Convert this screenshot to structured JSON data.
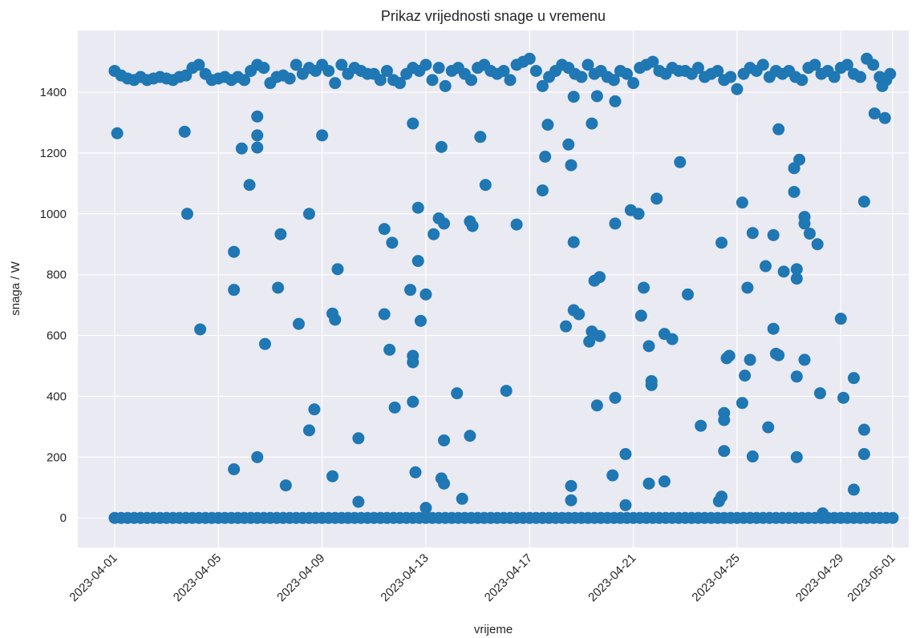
{
  "chart_data": {
    "type": "scatter",
    "title": "Prikaz vrijednosti snage u vremenu",
    "xlabel": "vrijeme",
    "ylabel": "snaga / W",
    "color": "#1f77b4",
    "grid": true,
    "xlim": [
      -1.42,
      30.62
    ],
    "ylim": [
      -97,
      1603
    ],
    "xticks": [
      {
        "value": 0,
        "label": "2023-04-01"
      },
      {
        "value": 4,
        "label": "2023-04-05"
      },
      {
        "value": 8,
        "label": "2023-04-09"
      },
      {
        "value": 12,
        "label": "2023-04-13"
      },
      {
        "value": 16,
        "label": "2023-04-17"
      },
      {
        "value": 20,
        "label": "2023-04-21"
      },
      {
        "value": 24,
        "label": "2023-04-25"
      },
      {
        "value": 28,
        "label": "2023-04-29"
      },
      {
        "value": 30,
        "label": "2023-05-01"
      }
    ],
    "yticks": [
      0,
      200,
      400,
      600,
      800,
      1000,
      1200,
      1400
    ],
    "x": [
      0,
      0.25,
      0.5,
      0.75,
      1,
      1.25,
      1.5,
      1.75,
      2,
      2.25,
      2.5,
      2.75,
      3,
      3.25,
      3.5,
      3.75,
      4,
      4.25,
      4.5,
      4.75,
      5,
      5.25,
      5.5,
      5.75,
      6,
      6.25,
      6.5,
      6.75,
      7,
      7.25,
      7.5,
      7.75,
      8,
      8.25,
      8.5,
      8.75,
      9,
      9.25,
      9.5,
      9.75,
      10,
      10.25,
      10.5,
      10.75,
      11,
      11.25,
      11.5,
      11.75,
      12,
      12.25,
      12.5,
      12.75,
      13,
      13.25,
      13.5,
      13.75,
      14,
      14.25,
      14.5,
      14.75,
      15,
      15.25,
      15.5,
      15.75,
      16,
      16.25,
      16.5,
      16.75,
      17,
      17.25,
      17.5,
      17.75,
      18,
      18.25,
      18.5,
      18.75,
      19,
      19.25,
      19.5,
      19.75,
      20,
      20.25,
      20.5,
      20.75,
      21,
      21.25,
      21.5,
      21.75,
      22,
      22.25,
      22.5,
      22.75,
      23,
      23.25,
      23.5,
      23.75,
      24,
      24.25,
      24.5,
      24.75,
      25,
      25.25,
      25.5,
      25.75,
      26,
      26.25,
      26.5,
      26.75,
      27,
      27.25,
      27.5,
      27.75,
      28,
      28.25,
      28.5,
      28.75,
      29,
      29.25,
      29.5,
      29.75,
      30,
      0,
      0.25,
      0.5,
      0.75,
      1,
      1.25,
      1.5,
      1.75,
      2,
      2.25,
      2.5,
      2.75,
      3,
      3.25,
      3.5,
      3.75,
      4,
      4.25,
      4.5,
      4.75,
      5,
      5.25,
      5.5,
      5.75,
      6,
      6.25,
      6.5,
      6.75,
      7,
      7.25,
      7.5,
      7.75,
      8,
      8.25,
      8.5,
      8.75,
      9,
      9.25,
      9.5,
      9.75,
      10,
      10.25,
      10.5,
      10.75,
      11,
      11.25,
      11.5,
      11.75,
      12,
      12.25,
      12.5,
      12.75,
      13,
      13.25,
      13.5,
      13.75,
      14,
      14.25,
      14.5,
      14.75,
      15,
      15.25,
      15.5,
      15.75,
      16,
      16.25,
      16.5,
      16.75,
      17,
      17.25,
      17.5,
      17.75,
      18,
      18.25,
      18.5,
      18.75,
      19,
      19.25,
      19.5,
      19.75,
      20,
      20.25,
      20.5,
      20.75,
      21,
      21.25,
      21.5,
      21.75,
      22,
      22.25,
      22.5,
      22.75,
      23,
      23.25,
      23.5,
      23.75,
      24,
      24.25,
      24.5,
      24.75,
      25,
      25.25,
      25.5,
      25.75,
      26,
      26.25,
      26.5,
      26.75,
      27,
      27.25,
      27.5,
      27.75,
      28,
      28.25,
      28.5,
      28.75,
      29,
      29.25,
      29.5,
      29.75,
      0.1,
      2.7,
      2.8,
      3.3,
      4.6,
      4.6,
      4.6,
      4.9,
      5.2,
      5.5,
      5.5,
      5.5,
      5.5,
      5.8,
      6.3,
      6.4,
      6.6,
      7.1,
      7.5,
      7.5,
      7.7,
      8.0,
      8.4,
      8.5,
      8.6,
      8.4,
      9.4,
      9.4,
      10.4,
      10.4,
      10.6,
      10.7,
      10.8,
      11.4,
      11.5,
      11.5,
      11.5,
      11.5,
      11.6,
      11.7,
      11.7,
      11.8,
      12.0,
      12.0,
      12.3,
      12.5,
      12.6,
      12.7,
      12.7,
      12.6,
      12.7,
      13.2,
      13.4,
      13.7,
      13.7,
      13.8,
      14.1,
      14.3,
      15.1,
      15.5,
      16.5,
      16.6,
      16.7,
      17.4,
      17.5,
      17.6,
      17.6,
      17.6,
      17.7,
      17.7,
      17.7,
      17.9,
      18.3,
      18.4,
      18.4,
      18.5,
      18.6,
      18.6,
      18.7,
      18.7,
      19.2,
      19.3,
      19.3,
      19.3,
      19.7,
      19.7,
      19.9,
      20.2,
      20.3,
      20.4,
      20.6,
      20.7,
      20.7,
      20.6,
      20.9,
      21.2,
      21.2,
      21.5,
      21.8,
      22.1,
      22.6,
      23.3,
      23.4,
      23.4,
      23.5,
      23.5,
      23.5,
      23.6,
      23.7,
      24.2,
      24.2,
      24.3,
      24.4,
      24.5,
      24.6,
      24.6,
      25.1,
      25.2,
      25.4,
      25.4,
      25.5,
      25.6,
      25.6,
      25.8,
      26.2,
      26.2,
      26.3,
      26.3,
      26.3,
      26.3,
      26.4,
      26.6,
      26.6,
      26.6,
      26.8,
      27.1,
      27.2,
      27.3,
      28.0,
      28.1,
      28.5,
      28.5,
      28.9,
      28.9,
      28.9,
      29.3,
      29.7,
      29.6,
      29.9
    ],
    "values": [
      0,
      0,
      0,
      0,
      0,
      0,
      0,
      0,
      0,
      0,
      0,
      0,
      0,
      0,
      0,
      0,
      0,
      0,
      0,
      0,
      0,
      0,
      0,
      0,
      0,
      0,
      0,
      0,
      0,
      0,
      0,
      0,
      0,
      0,
      0,
      0,
      0,
      0,
      0,
      0,
      0,
      0,
      0,
      0,
      0,
      0,
      0,
      0,
      0,
      0,
      0,
      0,
      0,
      0,
      0,
      0,
      0,
      0,
      0,
      0,
      0,
      0,
      0,
      0,
      0,
      0,
      0,
      0,
      0,
      0,
      0,
      0,
      0,
      0,
      0,
      0,
      0,
      0,
      0,
      0,
      0,
      0,
      0,
      0,
      0,
      0,
      0,
      0,
      0,
      0,
      0,
      0,
      0,
      0,
      0,
      0,
      0,
      0,
      0,
      0,
      0,
      0,
      0,
      0,
      0,
      0,
      0,
      0,
      0,
      0,
      0,
      0,
      0,
      0,
      0,
      0,
      0,
      0,
      0,
      0,
      0,
      1470,
      1455,
      1445,
      1440,
      1450,
      1440,
      1445,
      1450,
      1445,
      1440,
      1450,
      1455,
      1480,
      1490,
      1460,
      1440,
      1445,
      1450,
      1440,
      1450,
      1440,
      1470,
      1490,
      1480,
      1430,
      1450,
      1455,
      1445,
      1490,
      1460,
      1480,
      1470,
      1490,
      1470,
      1430,
      1490,
      1460,
      1480,
      1470,
      1460,
      1460,
      1440,
      1470,
      1440,
      1430,
      1460,
      1480,
      1470,
      1490,
      1440,
      1480,
      1420,
      1470,
      1480,
      1460,
      1440,
      1480,
      1490,
      1470,
      1460,
      1470,
      1440,
      1490,
      1500,
      1510,
      1470,
      1420,
      1450,
      1470,
      1490,
      1480,
      1460,
      1450,
      1490,
      1460,
      1470,
      1450,
      1440,
      1470,
      1460,
      1430,
      1480,
      1490,
      1500,
      1470,
      1460,
      1480,
      1470,
      1470,
      1460,
      1480,
      1450,
      1460,
      1470,
      1440,
      1450,
      1410,
      1460,
      1480,
      1470,
      1490,
      1450,
      1470,
      1460,
      1470,
      1450,
      1440,
      1480,
      1490,
      1460,
      1470,
      1450,
      1480,
      1490,
      1460,
      1450,
      1510,
      1490,
      1450,
      1440,
      1265,
      1270,
      1000,
      620,
      875,
      750,
      160,
      1215,
      1095,
      1320,
      1258,
      1218,
      200,
      572,
      757,
      933,
      107,
      638,
      1000,
      288,
      357,
      1258,
      672,
      652,
      818,
      137,
      53,
      262,
      670,
      950,
      553,
      905,
      363,
      750,
      1297,
      533,
      512,
      382,
      150,
      1020,
      845,
      648,
      33,
      735,
      933,
      985,
      1220,
      968,
      255,
      130,
      113,
      410,
      63,
      270,
      975,
      960,
      1253,
      1095,
      418,
      965,
      1077,
      1188,
      1293,
      630,
      1228,
      1160,
      58,
      105,
      683,
      1385,
      907,
      670,
      580,
      1297,
      613,
      780,
      1387,
      370,
      598,
      792,
      140,
      395,
      968,
      1370,
      210,
      42,
      1012,
      1000,
      665,
      757,
      565,
      437,
      450,
      113,
      1050,
      605,
      120,
      588,
      1170,
      735,
      303,
      55,
      905,
      70,
      345,
      322,
      220,
      525,
      533,
      1037,
      378,
      468,
      757,
      520,
      202,
      937,
      828,
      298,
      930,
      622,
      540,
      535,
      1278,
      810,
      1072,
      1150,
      200,
      465,
      818,
      787,
      1178,
      520,
      990,
      968,
      935,
      900,
      410,
      15,
      655,
      395,
      460,
      93,
      1040,
      290,
      210,
      1330,
      1315,
      1420,
      1460
    ]
  }
}
